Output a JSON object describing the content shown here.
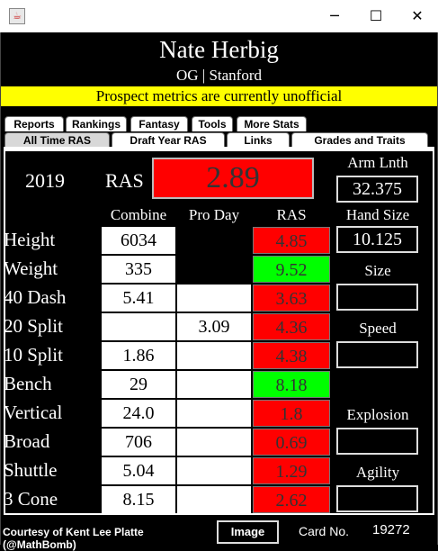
{
  "window": {
    "minimize": "─",
    "maximize": "☐",
    "close": "✕",
    "icon": "java-cup-icon"
  },
  "player": {
    "name": "Nate Herbig",
    "position_school": "OG | Stanford"
  },
  "banner": "Prospect metrics are currently unofficial",
  "tabs_row1": [
    "Reports",
    "Rankings",
    "Fantasy",
    "Tools",
    "More Stats"
  ],
  "tabs_row2": [
    "All Time RAS",
    "Draft Year RAS",
    "Links",
    "Grades and Traits"
  ],
  "ras": {
    "year": "2019",
    "label": "RAS",
    "score": "2.89"
  },
  "arm": {
    "label": "Arm Lnth",
    "value": "32.375"
  },
  "hand": {
    "label": "Hand Size",
    "value": "10.125"
  },
  "columns": {
    "combine": "Combine",
    "proday": "Pro Day",
    "ras": "RAS"
  },
  "rows": [
    {
      "label": "Height",
      "combine": "6034",
      "proday": "",
      "ras": "4.85"
    },
    {
      "label": "Weight",
      "combine": "335",
      "proday": "",
      "ras": "9.52"
    },
    {
      "label": "40 Dash",
      "combine": "5.41",
      "proday": "",
      "ras": "3.63"
    },
    {
      "label": "20 Split",
      "combine": "",
      "proday": "3.09",
      "ras": "4.36"
    },
    {
      "label": "10 Split",
      "combine": "1.86",
      "proday": "",
      "ras": "4.38"
    },
    {
      "label": "Bench",
      "combine": "29",
      "proday": "",
      "ras": "8.18"
    },
    {
      "label": "Vertical",
      "combine": "24.0",
      "proday": "",
      "ras": "1.8"
    },
    {
      "label": "Broad",
      "combine": "706",
      "proday": "",
      "ras": "0.69"
    },
    {
      "label": "Shuttle",
      "combine": "5.04",
      "proday": "",
      "ras": "1.29"
    },
    {
      "label": "3 Cone",
      "combine": "8.15",
      "proday": "",
      "ras": "2.62"
    }
  ],
  "grades": {
    "size": "Size",
    "speed": "Speed",
    "explosion": "Explosion",
    "agility": "Agility"
  },
  "footer": {
    "credit": "Courtesy of Kent Lee Platte (@MathBomb)",
    "image_button": "Image",
    "card_label": "Card No.",
    "card_no": "19272"
  },
  "colors": {
    "poor": "#ff0000",
    "good": "#00ff00",
    "banner": "#ffff00"
  }
}
